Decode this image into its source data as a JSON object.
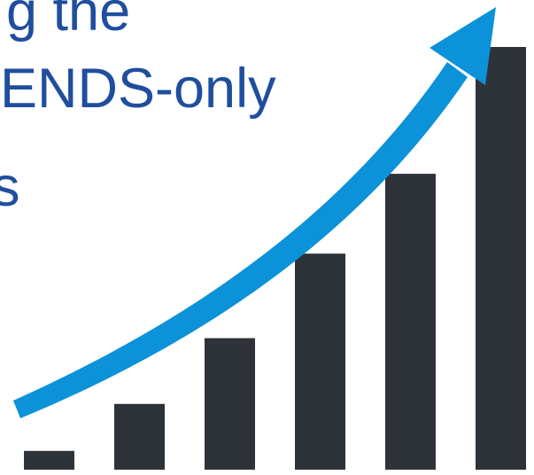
{
  "headline": {
    "lines": [
      "g the",
      "ENDS-only",
      "s"
    ],
    "color": "#1f4e9e"
  },
  "graphic": {
    "bar_color": "#2d3339",
    "arrow_color": "#0b92d8",
    "bar_levels": [
      0.04,
      0.14,
      0.28,
      0.46,
      0.63,
      0.9
    ]
  }
}
